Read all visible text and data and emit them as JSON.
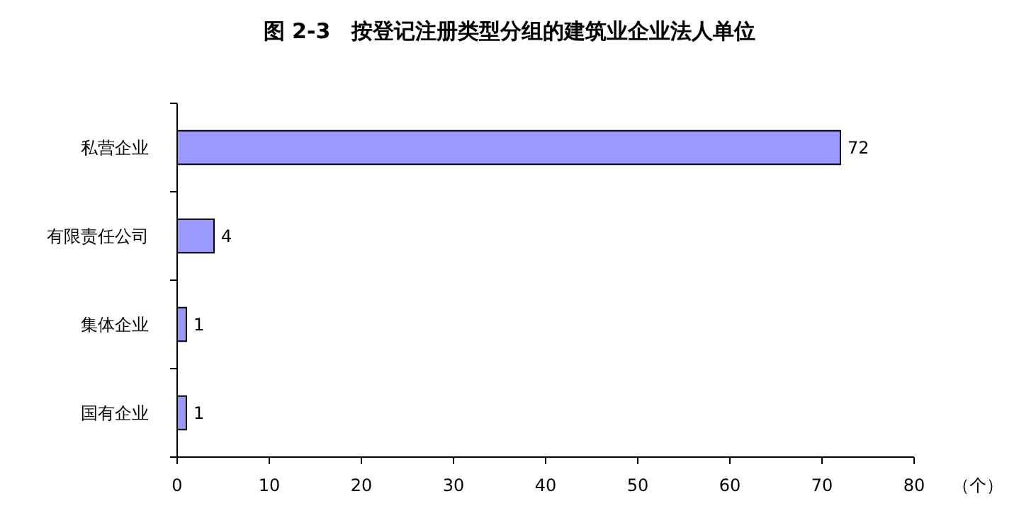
{
  "chart_data": {
    "type": "bar",
    "orientation": "horizontal",
    "title": "图 2-3　按登记注册类型分组的建筑业企业法人单位",
    "categories": [
      "私营企业",
      "有限责任公司",
      "集体企业",
      "国有企业"
    ],
    "values": [
      72,
      4,
      1,
      1
    ],
    "color": "#9999ff",
    "xlim": [
      0,
      80
    ],
    "xticks": [
      0,
      10,
      20,
      30,
      40,
      50,
      60,
      70,
      80
    ],
    "xlabel": "（个）",
    "data_labels": true
  }
}
